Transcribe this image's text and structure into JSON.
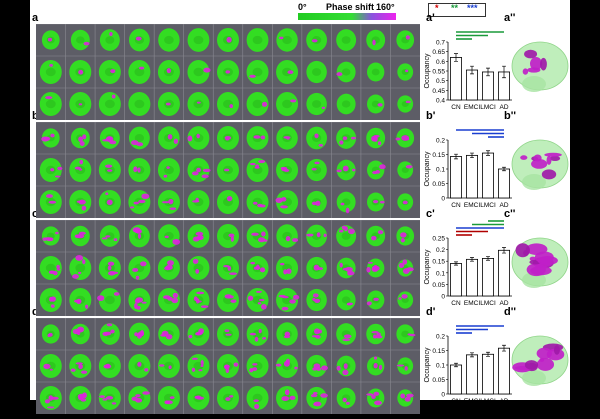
{
  "colorbar": {
    "min_label": "0°",
    "title": "Phase shift",
    "max_label": "160°"
  },
  "sig_legend": {
    "one": "*",
    "two": "**",
    "three": "***",
    "colors": [
      "#d40000",
      "#1a9a3a",
      "#1a3fd0"
    ]
  },
  "panels": [
    {
      "letter": "a",
      "bar_letter": "a'",
      "render_letter": "a''",
      "magenta_level": 0.05
    },
    {
      "letter": "b",
      "bar_letter": "b'",
      "render_letter": "b''",
      "magenta_level": 0.18
    },
    {
      "letter": "c",
      "bar_letter": "c'",
      "render_letter": "c''",
      "magenta_level": 0.25
    },
    {
      "letter": "d",
      "bar_letter": "d'",
      "render_letter": "d''",
      "magenta_level": 0.22
    }
  ],
  "chart_data": [
    {
      "type": "bar",
      "ylabel": "Occupancy",
      "categories": [
        "CN",
        "EMCI",
        "LMCI",
        "AD"
      ],
      "values": [
        0.62,
        0.555,
        0.545,
        0.545
      ],
      "errors": [
        0.02,
        0.02,
        0.02,
        0.03
      ],
      "ylim": [
        0.4,
        0.7
      ],
      "yticks": [
        "0.4",
        "0.45",
        "0.5",
        "0.55",
        "0.6",
        "0.65",
        "0.7"
      ],
      "sig_bars": [
        {
          "from": 0,
          "to": 1,
          "color": "#1a9a3a"
        },
        {
          "from": 0,
          "to": 2,
          "color": "#1a9a3a"
        },
        {
          "from": 0,
          "to": 3,
          "color": "#1a9a3a"
        }
      ]
    },
    {
      "type": "bar",
      "ylabel": "Occupancy",
      "categories": [
        "CN",
        "EMCI",
        "LMCI",
        "AD"
      ],
      "values": [
        0.143,
        0.147,
        0.155,
        0.1
      ],
      "errors": [
        0.008,
        0.008,
        0.008,
        0.006
      ],
      "ylim": [
        0,
        0.2
      ],
      "yticks": [
        "0",
        "0.05",
        "0.1",
        "0.15",
        "0.2"
      ],
      "sig_bars": [
        {
          "from": 2,
          "to": 3,
          "color": "#1a3fd0"
        },
        {
          "from": 1,
          "to": 3,
          "color": "#1a3fd0"
        },
        {
          "from": 0,
          "to": 3,
          "color": "#1a3fd0"
        }
      ]
    },
    {
      "type": "bar",
      "ylabel": "Occupancy",
      "categories": [
        "CN",
        "EMCI",
        "LMCI",
        "AD"
      ],
      "values": [
        0.14,
        0.158,
        0.162,
        0.197
      ],
      "errors": [
        0.007,
        0.008,
        0.008,
        0.012
      ],
      "ylim": [
        0,
        0.25
      ],
      "yticks": [
        "0",
        "0.05",
        "0.1",
        "0.15",
        "0.2",
        "0.25"
      ],
      "sig_bars": [
        {
          "from": 0,
          "to": 1,
          "color": "#b00000"
        },
        {
          "from": 0,
          "to": 2,
          "color": "#b00000"
        },
        {
          "from": 0,
          "to": 3,
          "color": "#1a3fd0"
        },
        {
          "from": 1,
          "to": 3,
          "color": "#1a9a3a"
        },
        {
          "from": 2,
          "to": 3,
          "color": "#1a9a3a"
        }
      ]
    },
    {
      "type": "bar",
      "ylabel": "Occupancy",
      "categories": [
        "CN",
        "EMCI",
        "LMCI",
        "AD"
      ],
      "values": [
        0.1,
        0.135,
        0.137,
        0.158
      ],
      "errors": [
        0.006,
        0.007,
        0.007,
        0.01
      ],
      "ylim": [
        0,
        0.2
      ],
      "yticks": [
        "0",
        "0.05",
        "0.1",
        "0.15",
        "0.2"
      ],
      "sig_bars": [
        {
          "from": 0,
          "to": 1,
          "color": "#1a3fd0"
        },
        {
          "from": 0,
          "to": 2,
          "color": "#1a3fd0"
        },
        {
          "from": 0,
          "to": 3,
          "color": "#1a3fd0"
        }
      ]
    }
  ]
}
